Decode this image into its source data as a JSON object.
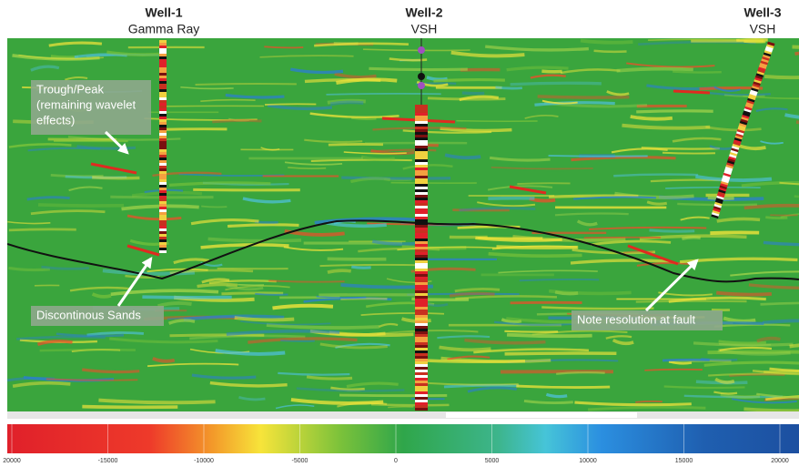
{
  "wells": [
    {
      "name": "Well-1",
      "log": "Gamma Ray"
    },
    {
      "name": "Well-2",
      "log": "VSH"
    },
    {
      "name": "Well-3",
      "log": "VSH"
    }
  ],
  "annotations": [
    {
      "lines": [
        "Trough/Peak",
        "(remaining wavelet",
        "effects)"
      ]
    },
    {
      "lines": [
        "Discontinous Sands"
      ]
    },
    {
      "lines": [
        "Note resolution at fault"
      ]
    }
  ],
  "colorbar": {
    "ticks": [
      {
        "value": -20000,
        "label": "20000"
      },
      -15000,
      -10000,
      -5000,
      0,
      5000,
      10000,
      15000,
      20000
    ]
  }
}
